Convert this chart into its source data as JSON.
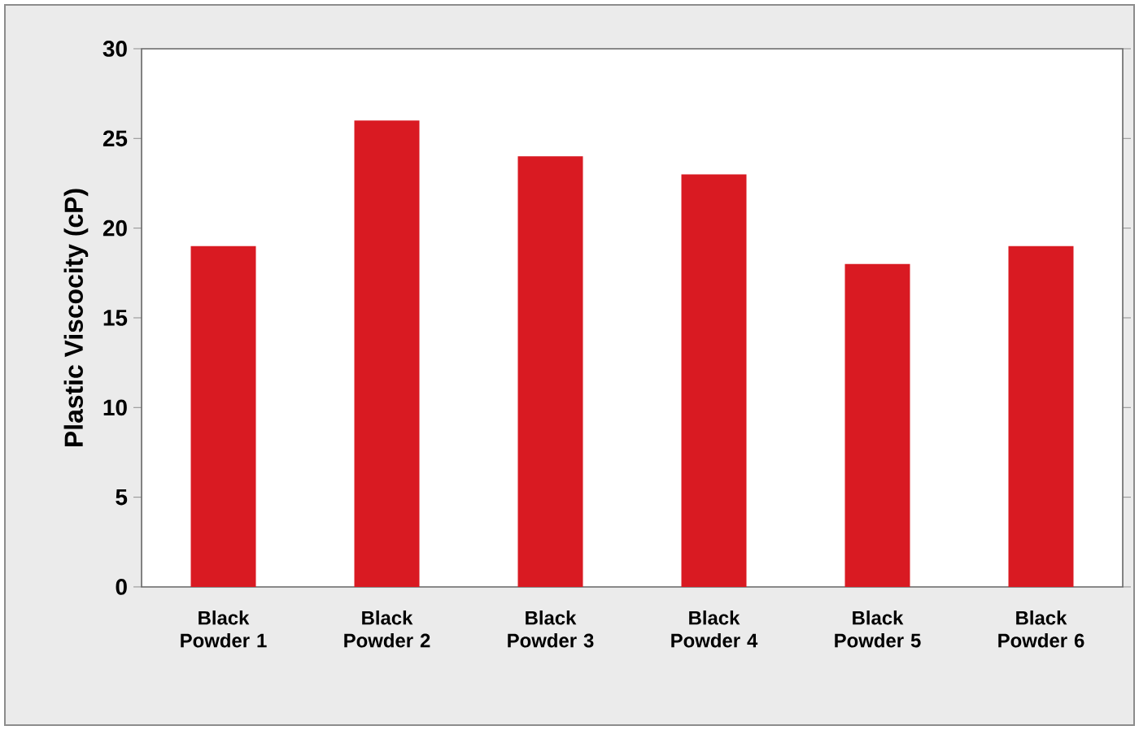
{
  "chart_data": {
    "type": "bar",
    "ylabel": "Plastic Viscocity (cP)",
    "categories": [
      "Black Powder 1",
      "Black Powder 2",
      "Black Powder 3",
      "Black Powder 4",
      "Black Powder 5",
      "Black Powder 6"
    ],
    "values": [
      19,
      26,
      24,
      23,
      18,
      19
    ],
    "color": "#d91a22",
    "ylim": [
      0,
      30
    ],
    "yticks": [
      0,
      5,
      10,
      15,
      20,
      25,
      30
    ]
  }
}
